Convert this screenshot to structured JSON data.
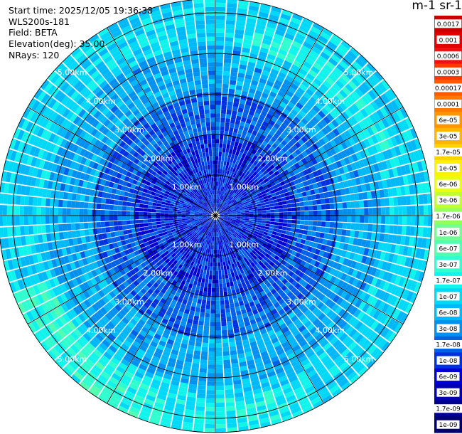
{
  "header": {
    "start_time": "Start time: 2025/12/05 19:36:38",
    "instrument": "WLS200s-181",
    "field": "Field: BETA",
    "elevation": "Elevation(deg): 35.00",
    "nrays": "NRays: 120"
  },
  "colorbar": {
    "title": "m-1 sr-1",
    "labels": [
      "0.0017",
      "0.001",
      "0.0006",
      "0.0003",
      "0.00017",
      "0.0001",
      "6e-05",
      "3e-05",
      "1.7e-05",
      "1e-05",
      "6e-06",
      "3e-06",
      "1.7e-06",
      "1e-06",
      "6e-07",
      "3e-07",
      "1.7e-07",
      "1e-07",
      "6e-08",
      "3e-08",
      "1.7e-08",
      "1e-08",
      "6e-09",
      "3e-09",
      "1.7e-09",
      "1e-09"
    ],
    "colors": [
      "#c80000",
      "#e00000",
      "#f41010",
      "#ff3a00",
      "#ff5a00",
      "#ff7800",
      "#ff9600",
      "#ffb400",
      "#ffd200",
      "#fff000",
      "#e8ff10",
      "#c0ff30",
      "#96ff60",
      "#70ff90",
      "#50ffb0",
      "#30ffd0",
      "#10f4ec",
      "#00d8f8",
      "#00b8f8",
      "#0090f0",
      "#0060e8",
      "#0030e0",
      "#0000d0",
      "#0000b0",
      "#000090",
      "#000070"
    ]
  },
  "chart_data": {
    "type": "polar_ppi",
    "field": "BETA",
    "elevation_deg": 35.0,
    "n_rays": 120,
    "range_rings_km": [
      1,
      2,
      3,
      4,
      5
    ],
    "ring_label_text": [
      "1.00km",
      "2.00km",
      "3.00km",
      "4.00km",
      "5.00km"
    ],
    "max_range_km": 5.35,
    "radial_spokes_deg": [
      0,
      30,
      60,
      90,
      120,
      150,
      180,
      210,
      240,
      270,
      300,
      330
    ],
    "colormap": "jet",
    "scale": "log",
    "zones": [
      {
        "range_km": [
          0.0,
          2.0
        ],
        "beta_typical": 3e-08,
        "color": "#0000ff"
      },
      {
        "range_km": [
          2.0,
          3.0
        ],
        "beta_typical": 8e-08,
        "color": "#0050ff"
      },
      {
        "range_km": [
          3.0,
          4.2
        ],
        "beta_typical": 1.7e-07,
        "color": "#20c8ff"
      },
      {
        "range_km": [
          4.2,
          5.35
        ],
        "beta_typical": 2.5e-07,
        "color": "#30ffd0"
      }
    ],
    "annotations": [
      "enhanced backscatter arc toward NE at 4.0–4.5 km",
      "enhanced backscatter toward SW at 4.5–5.3 km"
    ]
  }
}
